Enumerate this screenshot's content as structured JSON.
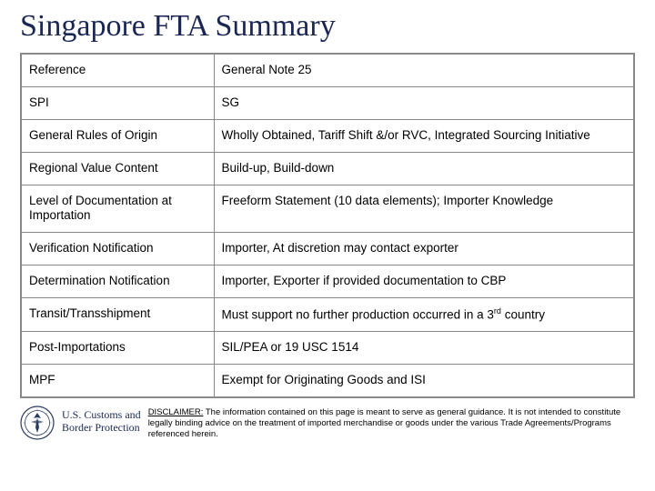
{
  "title": "Singapore FTA Summary",
  "table": {
    "rows": [
      {
        "label": "Reference",
        "value": "General Note 25"
      },
      {
        "label": "SPI",
        "value": "SG"
      },
      {
        "label": "General Rules of Origin",
        "value": "Wholly Obtained, Tariff Shift &/or RVC, Integrated Sourcing Initiative"
      },
      {
        "label": "Regional Value Content",
        "value": "Build-up, Build-down"
      },
      {
        "label": "Level of Documentation at Importation",
        "value": "Freeform Statement (10 data elements); Importer Knowledge"
      },
      {
        "label": "Verification Notification",
        "value": "Importer, At discretion may contact exporter"
      },
      {
        "label": "Determination Notification",
        "value": "Importer, Exporter if provided documentation to CBP"
      },
      {
        "label": "Transit/Transshipment",
        "value_html": "Must support no further production occurred in a 3<span class=\"sup\">rd</span> country"
      },
      {
        "label": "Post-Importations",
        "value": "SIL/PEA or 19 USC 1514"
      },
      {
        "label": "MPF",
        "value": "Exempt for Originating Goods and ISI"
      }
    ]
  },
  "agency": {
    "line1": "U.S. Customs and",
    "line2": "Border Protection",
    "seal_color": "#2a3a5e"
  },
  "disclaimer": {
    "label": "DISCLAIMER:",
    "text": " The information contained on this page is meant to serve as general guidance. It is not intended to constitute legally binding advice on the treatment of imported merchandise or goods under the various Trade Agreements/Programs referenced herein."
  }
}
